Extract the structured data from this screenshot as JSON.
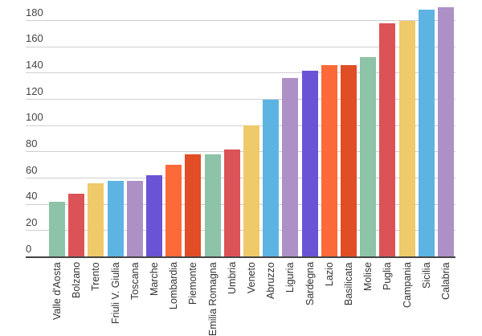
{
  "chart_data": {
    "type": "bar",
    "title": "",
    "xlabel": "",
    "ylabel": "",
    "ylim": [
      0,
      180
    ],
    "yticks": [
      0,
      20,
      40,
      60,
      80,
      100,
      120,
      140,
      160,
      180
    ],
    "grid": true,
    "legend": "none",
    "categories": [
      "Valle d'Aosta",
      "Bolzano",
      "Trento",
      "Friuli V. Giulia",
      "Toscana",
      "Marche",
      "Lombardia",
      "Piemonte",
      "Emilia Romagna",
      "Umbria",
      "Veneto",
      "Abruzzo",
      "Liguria",
      "Sardegna",
      "Lazio",
      "Basilicata",
      "Molise",
      "Puglia",
      "Campania",
      "Sicilia",
      "Calabria"
    ],
    "values": [
      42,
      48,
      56,
      58,
      58,
      62,
      70,
      78,
      78,
      82,
      100,
      120,
      136,
      142,
      146,
      146,
      152,
      178,
      180,
      188,
      190
    ],
    "colors": [
      "#8dc3a7",
      "#dc5357",
      "#efca6b",
      "#5db4e3",
      "#ad91c6",
      "#6b53d6",
      "#fb6a38",
      "#e14d24",
      "#8dc3a7",
      "#dc5357",
      "#efca6b",
      "#5db4e3",
      "#ad91c6",
      "#6b53d6",
      "#fb6a38",
      "#e14d24",
      "#8dc3a7",
      "#dc5357",
      "#efca6b",
      "#5db4e3",
      "#ad91c6"
    ]
  }
}
